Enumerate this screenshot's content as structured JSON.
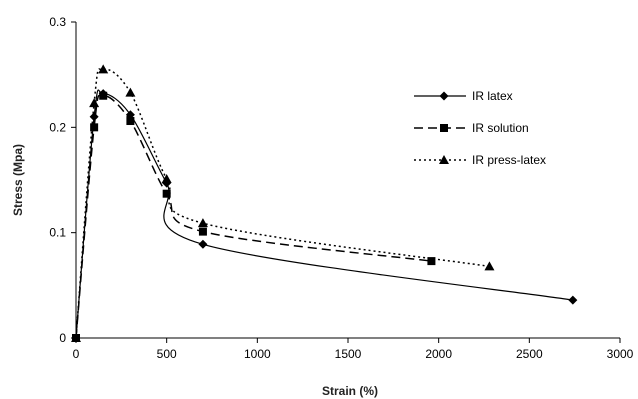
{
  "chart_data": {
    "type": "line",
    "title": "",
    "xlabel": "Strain (%)",
    "ylabel": "Stress (Mpa)",
    "xlim": [
      0,
      3000
    ],
    "ylim": [
      0,
      0.3
    ],
    "x_ticks": [
      0,
      500,
      1000,
      1500,
      2000,
      2500,
      3000
    ],
    "y_ticks": [
      0,
      0.1,
      0.2,
      0.3
    ],
    "x_tick_labels": [
      "0",
      "500",
      "1000",
      "1500",
      "2000",
      "2500",
      "3000"
    ],
    "y_tick_labels": [
      "0",
      "0.1",
      "0.2",
      "0.3"
    ],
    "grid": false,
    "legend_position": "right",
    "series": [
      {
        "name": "IR latex",
        "line_style": "solid",
        "marker": "diamond",
        "color": "#000000",
        "x": [
          0,
          100,
          150,
          300,
          500,
          700,
          2740
        ],
        "y": [
          0,
          0.21,
          0.232,
          0.212,
          0.147,
          0.089,
          0.036
        ]
      },
      {
        "name": "IR solution",
        "line_style": "dashed",
        "marker": "square",
        "color": "#000000",
        "x": [
          0,
          100,
          150,
          300,
          500,
          700,
          1960
        ],
        "y": [
          0,
          0.2,
          0.23,
          0.206,
          0.137,
          0.101,
          0.073
        ]
      },
      {
        "name": "IR press-latex",
        "line_style": "dotted",
        "marker": "triangle",
        "color": "#000000",
        "x": [
          0,
          100,
          150,
          300,
          500,
          700,
          2280
        ],
        "y": [
          0,
          0.223,
          0.255,
          0.233,
          0.151,
          0.109,
          0.068
        ]
      }
    ]
  }
}
